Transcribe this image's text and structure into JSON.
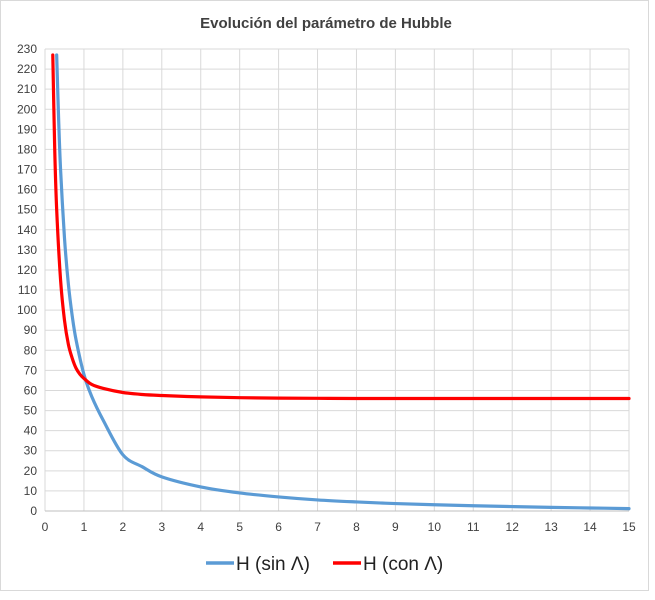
{
  "chart_data": {
    "type": "line",
    "title": "Evolución del parámetro de Hubble",
    "xlabel": "",
    "ylabel": "",
    "xlim": [
      0,
      15
    ],
    "ylim": [
      0,
      230
    ],
    "x_ticks": [
      0,
      1,
      2,
      3,
      4,
      5,
      6,
      7,
      8,
      9,
      10,
      11,
      12,
      13,
      14,
      15
    ],
    "y_ticks": [
      0,
      10,
      20,
      30,
      40,
      50,
      60,
      70,
      80,
      90,
      100,
      110,
      120,
      130,
      140,
      150,
      160,
      170,
      180,
      190,
      200,
      210,
      220,
      230
    ],
    "grid": true,
    "legend_position": "bottom",
    "series": [
      {
        "name": "H (sin Λ)",
        "color": "#5b9bd5",
        "x": [
          0.3,
          0.35,
          0.4,
          0.5,
          0.6,
          0.7,
          0.8,
          1.0,
          1.2,
          1.5,
          2.0,
          2.5,
          3.0,
          4.0,
          5.0,
          6.0,
          7.0,
          8.0,
          9.0,
          10.0,
          11.0,
          12.0,
          13.0,
          14.0,
          15.0
        ],
        "y": [
          227,
          195,
          170,
          136,
          113,
          97,
          85,
          68,
          57,
          45,
          28,
          22,
          17,
          12,
          9,
          7,
          5.5,
          4.5,
          3.7,
          3.1,
          2.6,
          2.2,
          1.8,
          1.5,
          1.2
        ]
      },
      {
        "name": "H (con Λ)",
        "color": "#ff0000",
        "x": [
          0.2,
          0.25,
          0.3,
          0.4,
          0.5,
          0.6,
          0.7,
          0.8,
          0.9,
          1.0,
          1.2,
          1.5,
          2.0,
          2.5,
          3.0,
          4.0,
          5.0,
          6.0,
          7.0,
          8.0,
          9.0,
          10.0,
          11.0,
          12.0,
          13.0,
          14.0,
          15.0
        ],
        "y": [
          227,
          180,
          150,
          115,
          95,
          83,
          76,
          71,
          68,
          66,
          63,
          61,
          59,
          58,
          57.5,
          56.8,
          56.4,
          56.2,
          56.1,
          56.0,
          56.0,
          56.0,
          56.0,
          56.0,
          56.0,
          56.0,
          56.0
        ]
      }
    ]
  }
}
